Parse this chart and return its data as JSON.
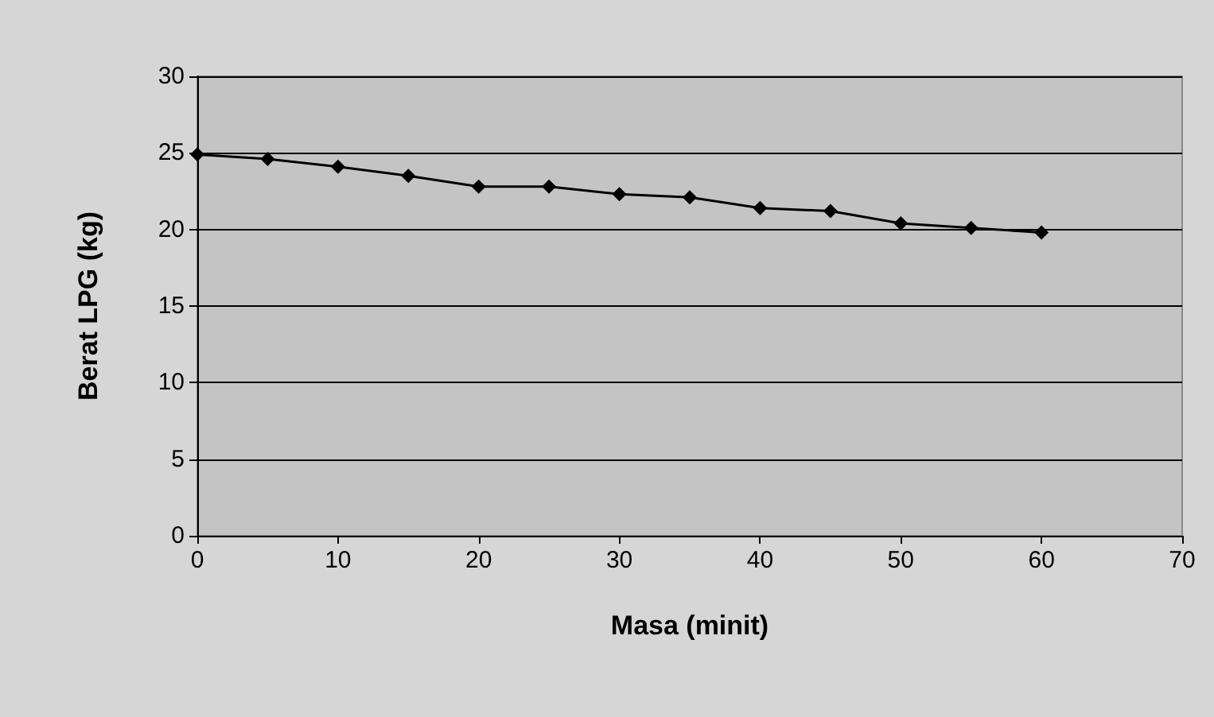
{
  "chart_data": {
    "type": "line",
    "xlabel": "Masa (minit)",
    "ylabel": "Berat LPG (kg)",
    "x": [
      0,
      5,
      10,
      15,
      20,
      25,
      30,
      35,
      40,
      45,
      50,
      55,
      60
    ],
    "series": [
      {
        "color": "#000000",
        "values": [
          24.9,
          24.6,
          24.1,
          23.5,
          22.8,
          22.8,
          22.3,
          22.1,
          21.4,
          21.2,
          20.4,
          20.1,
          19.8
        ]
      }
    ],
    "xlim": [
      0,
      70
    ],
    "xticks": [
      0,
      10,
      20,
      30,
      40,
      50,
      60,
      70
    ],
    "ylim": [
      0,
      30
    ],
    "yticks": [
      0,
      5,
      10,
      15,
      20,
      25,
      30
    ],
    "grid": "y",
    "marker": "diamond",
    "line_style": "solid"
  }
}
